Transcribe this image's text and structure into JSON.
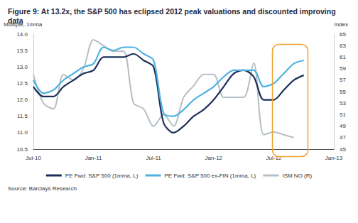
{
  "chart_data": {
    "type": "line",
    "title": "Figure 9: At 13.2x, the S&P 500 has eclipsed 2012 peak valuations and discounted improving data",
    "ylabel": "Multiple, 1mma",
    "y2label": "Index",
    "source": "Source: Barclays Research",
    "categories": [
      "Jul-10",
      null,
      null,
      null,
      null,
      null,
      "Jan-11",
      null,
      null,
      null,
      null,
      null,
      "Jul-11",
      null,
      null,
      null,
      null,
      null,
      "Jan-12",
      null,
      null,
      null,
      null,
      null,
      "Jul-12",
      null,
      null,
      null,
      null,
      null,
      "Jan-13"
    ],
    "series": [
      {
        "name": "PE Fwd: S&P 500 (1mma, L)",
        "color": "#1b2f5a",
        "values": [
          12.4,
          12.1,
          12.1,
          12.4,
          12.6,
          12.8,
          12.9,
          13.3,
          13.3,
          13.3,
          13.4,
          13.2,
          13.0,
          11.3,
          11.0,
          11.2,
          11.5,
          11.7,
          12.0,
          12.4,
          12.8,
          12.9,
          12.7,
          12.0,
          12.0,
          12.3,
          12.6,
          12.75,
          null,
          null,
          null
        ]
      },
      {
        "name": "PE Fwd: S&P 500 ex-FIN (1mma, L)",
        "color": "#4fb3e0",
        "values": [
          12.6,
          12.2,
          12.3,
          12.6,
          12.8,
          13.0,
          13.1,
          13.6,
          13.5,
          13.6,
          13.6,
          13.4,
          13.2,
          11.6,
          11.5,
          11.7,
          12.0,
          12.2,
          12.4,
          12.7,
          12.9,
          12.9,
          12.9,
          12.4,
          12.5,
          12.8,
          13.1,
          13.2,
          null,
          null,
          null
        ]
      },
      {
        "name": "ISM NO (R)",
        "color": "#b7c0c6",
        "axis": "y2",
        "values": [
          58,
          53,
          52,
          58,
          57,
          59,
          64,
          63,
          62,
          62,
          53,
          52,
          49,
          51,
          49,
          54,
          56,
          58,
          58,
          54,
          54,
          54,
          60,
          47.5,
          48,
          47.5,
          47,
          null,
          null,
          null,
          null
        ]
      }
    ],
    "ylim": [
      10.5,
      14.0
    ],
    "yticks": [
      10.5,
      {
        "value": 11,
        "label": "11.0"
      },
      11.5,
      {
        "value": 12,
        "label": "12.0"
      },
      12.5,
      {
        "value": 13,
        "label": "13.0"
      },
      13.5,
      {
        "value": 14,
        "label": "14.0"
      }
    ],
    "y2lim": [
      45,
      65
    ],
    "y2ticks": [
      45,
      47,
      49,
      51,
      53,
      55,
      57,
      59,
      61,
      63,
      65
    ],
    "grid": false,
    "legend": "bottom"
  }
}
